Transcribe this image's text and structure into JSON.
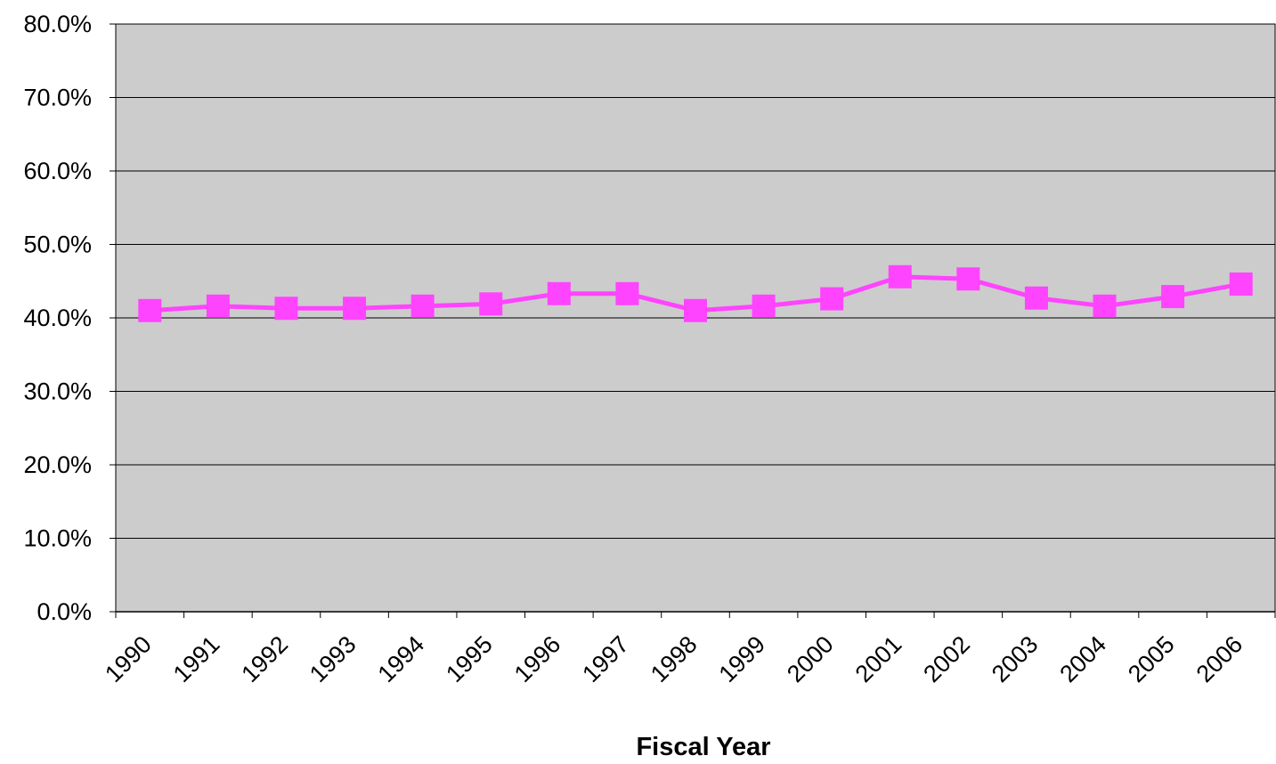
{
  "chart_data": {
    "type": "line",
    "title": "",
    "xlabel": "Fiscal Year",
    "ylabel": "",
    "categories": [
      "1990",
      "1991",
      "1992",
      "1993",
      "1994",
      "1995",
      "1996",
      "1997",
      "1998",
      "1999",
      "2000",
      "2001",
      "2002",
      "2003",
      "2004",
      "2005",
      "2006"
    ],
    "series": [
      {
        "values": [
          41.0,
          41.6,
          41.3,
          41.3,
          41.6,
          41.9,
          43.3,
          43.3,
          41.0,
          41.6,
          42.6,
          45.6,
          45.3,
          42.7,
          41.6,
          42.9,
          44.6
        ],
        "color": "#ff44ff",
        "marker": "square"
      }
    ],
    "ylim": [
      0,
      80
    ],
    "yticks": [
      0,
      10,
      20,
      30,
      40,
      50,
      60,
      70,
      80
    ],
    "ytick_labels": [
      "0.0%",
      "10.0%",
      "20.0%",
      "30.0%",
      "40.0%",
      "50.0%",
      "60.0%",
      "70.0%",
      "80.0%"
    ],
    "grid": true,
    "legend": "none",
    "plot_background": "#cccccc",
    "gridline_color": "#000000"
  }
}
